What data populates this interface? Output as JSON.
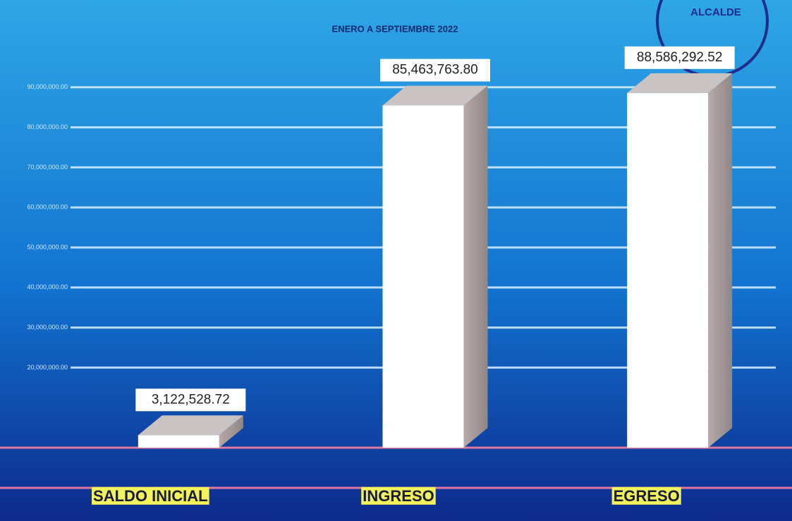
{
  "chart_data": {
    "type": "bar3d",
    "title": "ENERO A SEPTIEMBRE 2022",
    "categories": [
      "SALDO INICIAL",
      "INGRESO",
      "EGRESO"
    ],
    "values": [
      3122528.72,
      85463763.8,
      88586292.52
    ],
    "value_labels": [
      "3,122,528.72",
      "85,463,763.80",
      "88,586,292.52"
    ],
    "color": "#ffffff",
    "ylim": [
      0,
      100000000
    ],
    "yticks": [
      {
        "value": 20000000,
        "label": "20,000,000.00"
      },
      {
        "value": 30000000,
        "label": "30,000,000.00"
      },
      {
        "value": 40000000,
        "label": "40,000,000.00"
      },
      {
        "value": 50000000,
        "label": "50,000,000.00"
      },
      {
        "value": 60000000,
        "label": "60,000,000.00"
      },
      {
        "value": 70000000,
        "label": "70,000,000.00"
      },
      {
        "value": 80000000,
        "label": "80,000,000.00"
      },
      {
        "value": 90000000,
        "label": "90,000,000.00"
      }
    ],
    "grid": true
  },
  "stamp": "ALCALDE"
}
